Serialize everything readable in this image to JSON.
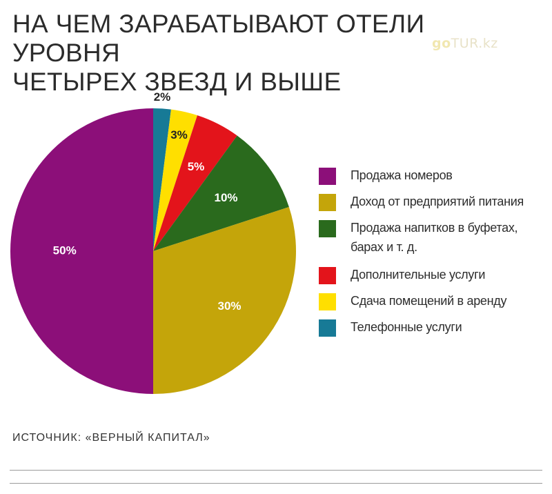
{
  "title_lines": [
    "НА ЧЕМ ЗАРАБАТЫВАЮТ ОТЕЛИ УРОВНЯ",
    "ЧЕТЫРЕХ ЗВЕЗД И ВЫШЕ"
  ],
  "watermark": {
    "go": "go",
    "rest": "TUR.kz"
  },
  "source": "ИСТОЧНИК: «ВЕРНЫЙ КАПИТАЛ»",
  "chart_data": {
    "type": "pie",
    "title": "НА ЧЕМ ЗАРАБАТЫВАЮТ ОТЕЛИ УРОВНЯ ЧЕТЫРЕХ ЗВЕЗД И ВЫШЕ",
    "start": "12 o'clock",
    "direction": "clockwise",
    "legend_position": "right",
    "slices": [
      {
        "label": "Телефонные услуги",
        "value": 2,
        "value_label": "2%",
        "color": "#177a96",
        "label_color": "#222222"
      },
      {
        "label": "Сдача помещений в аренду",
        "value": 3,
        "value_label": "3%",
        "color": "#ffdf00",
        "label_color": "#222222"
      },
      {
        "label": "Дополнительные услуги",
        "value": 5,
        "value_label": "5%",
        "color": "#e3141b",
        "label_color": "#ffffff"
      },
      {
        "label": "Продажа напитков в буфетах, барах и т. д.",
        "value": 10,
        "value_label": "10%",
        "color": "#2a6a1d",
        "label_color": "#ffffff"
      },
      {
        "label": "Доход от предприятий питания",
        "value": 30,
        "value_label": "30%",
        "color": "#c4a50a",
        "label_color": "#ffffff"
      },
      {
        "label": "Продажа номеров",
        "value": 50,
        "value_label": "50%",
        "color": "#8c0f79",
        "label_color": "#ffffff"
      }
    ],
    "legend": [
      {
        "lines": [
          "Продажа номеров"
        ],
        "color": "#8c0f79"
      },
      {
        "lines": [
          "Доход от предприятий питания"
        ],
        "color": "#c4a50a"
      },
      {
        "lines": [
          "Продажа напитков в буфетах,",
          "барах и т. д."
        ],
        "color": "#2a6a1d"
      },
      {
        "lines": [
          "Дополнительные услуги"
        ],
        "color": "#e3141b"
      },
      {
        "lines": [
          "Сдача помещений в аренду"
        ],
        "color": "#ffdf00"
      },
      {
        "lines": [
          "Телефонные услуги"
        ],
        "color": "#177a96"
      }
    ]
  }
}
